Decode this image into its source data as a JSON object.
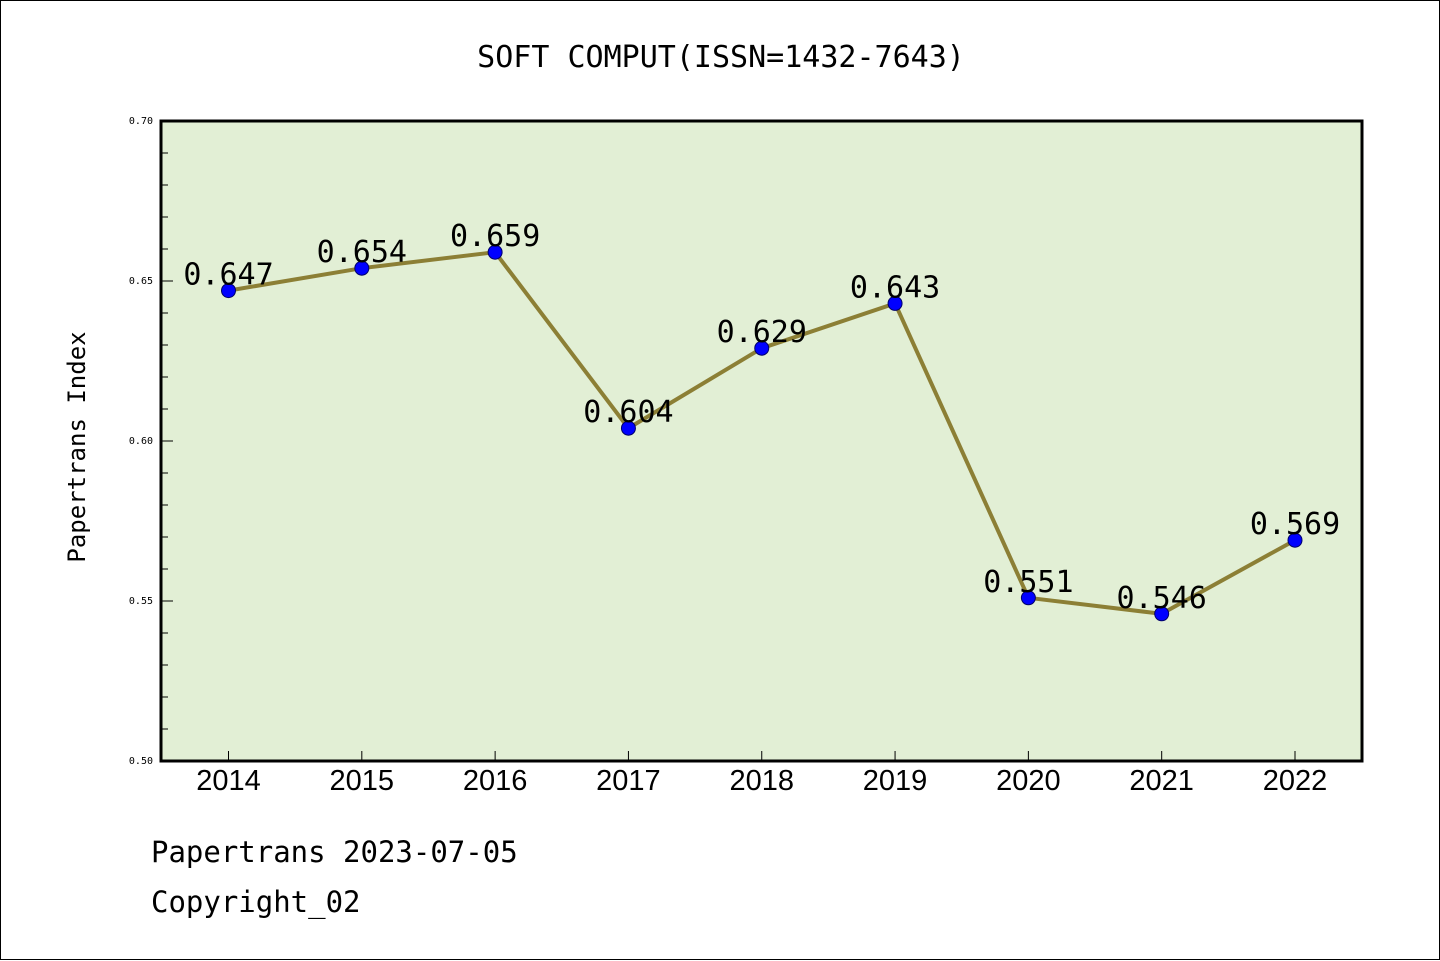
{
  "chart_data": {
    "type": "line",
    "title": "SOFT COMPUT(ISSN=1432-7643)",
    "xlabel": "",
    "ylabel": "Papertrans Index",
    "categories": [
      "2014",
      "2015",
      "2016",
      "2017",
      "2018",
      "2019",
      "2020",
      "2021",
      "2022"
    ],
    "values": [
      0.647,
      0.654,
      0.659,
      0.604,
      0.629,
      0.643,
      0.551,
      0.546,
      0.569
    ],
    "data_labels": [
      "0.647",
      "0.654",
      "0.659",
      "0.604",
      "0.629",
      "0.643",
      "0.551",
      "0.546",
      "0.569"
    ],
    "ylim": [
      0.5,
      0.7
    ],
    "yticks": [
      "0.50",
      "0.55",
      "0.60",
      "0.65",
      "0.70"
    ],
    "grid": false,
    "colors": {
      "plot_background": "#e2efd5",
      "line": "#8c7f35",
      "marker": "#0000ff"
    }
  },
  "footer": {
    "line1": "Papertrans 2023-07-05",
    "line2": "Copyright_02"
  }
}
